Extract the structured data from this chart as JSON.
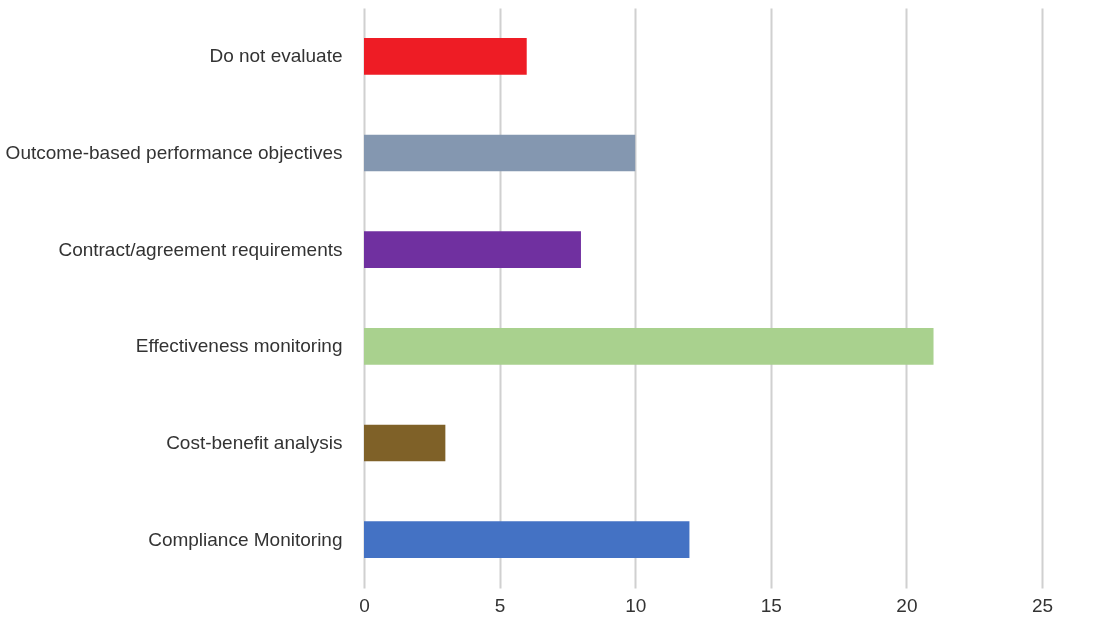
{
  "chart_data": {
    "type": "bar",
    "orientation": "horizontal",
    "categories": [
      "Do not evaluate",
      "Outcome-based performance objectives",
      "Contract/agreement requirements",
      "Effectiveness monitoring",
      "Cost-benefit analysis",
      "Compliance Monitoring"
    ],
    "values": [
      6,
      10,
      8,
      21,
      3,
      12
    ],
    "colors": [
      "#ee1c25",
      "#8497b0",
      "#7030a0",
      "#a9d18e",
      "#7f6128",
      "#4472c4"
    ],
    "xlim": [
      0,
      25
    ],
    "xticks": [
      0,
      5,
      10,
      15,
      20,
      25
    ],
    "grid": "x"
  }
}
